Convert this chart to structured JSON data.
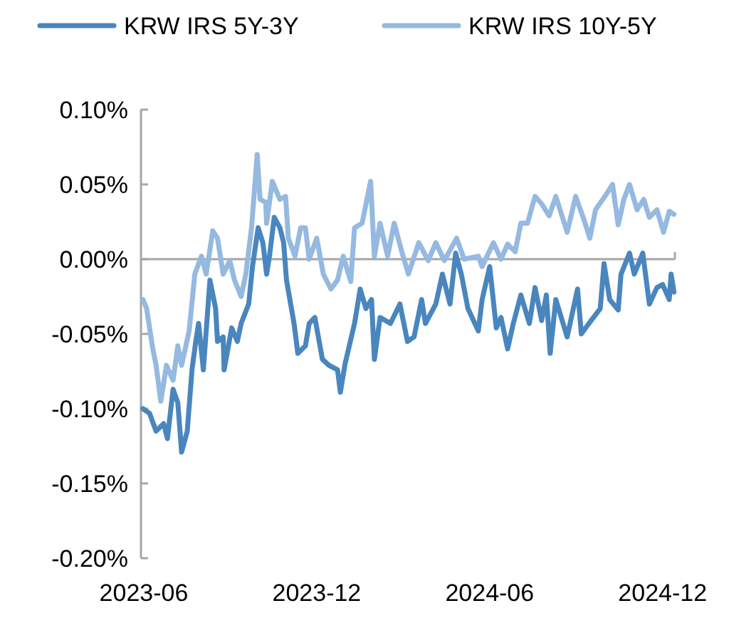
{
  "chart_data": {
    "type": "line",
    "legend": "top",
    "line_style": "solid",
    "marker": "none",
    "xlim": [
      "2023-05-29",
      "2024-12-14"
    ],
    "xticks": [
      {
        "value": "2023-06-01",
        "label": "2023-06"
      },
      {
        "value": "2023-12-01",
        "label": "2023-12"
      },
      {
        "value": "2024-06-01",
        "label": "2024-06"
      },
      {
        "value": "2024-12-01",
        "label": "2024-12"
      }
    ],
    "ylim": [
      -0.2,
      0.1
    ],
    "yticks": [
      {
        "value": -0.2,
        "label": "-0.20%"
      },
      {
        "value": -0.15,
        "label": "-0.15%"
      },
      {
        "value": -0.1,
        "label": "-0.10%"
      },
      {
        "value": -0.05,
        "label": "-0.05%"
      },
      {
        "value": 0,
        "label": "0.00%"
      },
      {
        "value": 0.05,
        "label": "0.05%"
      },
      {
        "value": 0.1,
        "label": "0.10%"
      }
    ],
    "series": [
      {
        "name": "KRW IRS 5Y-3Y",
        "color": "#4a86be",
        "x": [
          "2023-05-31",
          "2023-06-07",
          "2023-06-14",
          "2023-06-22",
          "2023-06-26",
          "2023-07-02",
          "2023-07-07",
          "2023-07-11",
          "2023-07-17",
          "2023-07-22",
          "2023-07-26",
          "2023-07-29",
          "2023-08-03",
          "2023-08-10",
          "2023-08-16",
          "2023-08-18",
          "2023-08-24",
          "2023-08-25",
          "2023-09-02",
          "2023-09-08",
          "2023-09-12",
          "2023-09-20",
          "2023-09-24",
          "2023-09-30",
          "2023-10-05",
          "2023-10-09",
          "2023-10-12",
          "2023-10-17",
          "2023-10-23",
          "2023-10-27",
          "2023-10-30",
          "2023-11-07",
          "2023-11-11",
          "2023-11-19",
          "2023-11-23",
          "2023-11-29",
          "2023-12-07",
          "2023-12-14",
          "2023-12-23",
          "2023-12-26",
          "2023-12-31",
          "2024-01-10",
          "2024-01-16",
          "2024-01-22",
          "2024-01-28",
          "2024-01-31",
          "2024-02-06",
          "2024-02-17",
          "2024-02-27",
          "2024-03-06",
          "2024-03-13",
          "2024-03-21",
          "2024-03-25",
          "2024-04-05",
          "2024-04-12",
          "2024-04-20",
          "2024-04-26",
          "2024-05-02",
          "2024-05-09",
          "2024-05-20",
          "2024-05-24",
          "2024-06-01",
          "2024-06-08",
          "2024-06-13",
          "2024-06-20",
          "2024-06-26",
          "2024-07-04",
          "2024-07-13",
          "2024-07-19",
          "2024-07-26",
          "2024-07-31",
          "2024-08-04",
          "2024-08-10",
          "2024-08-22",
          "2024-09-02",
          "2024-09-06",
          "2024-09-14",
          "2024-09-26",
          "2024-09-30",
          "2024-10-06",
          "2024-10-15",
          "2024-10-18",
          "2024-10-27",
          "2024-11-01",
          "2024-11-10",
          "2024-11-17",
          "2024-11-25",
          "2024-12-01",
          "2024-12-08",
          "2024-12-10",
          "2024-12-13"
        ],
        "values": [
          -0.1,
          -0.103,
          -0.115,
          -0.11,
          -0.12,
          -0.087,
          -0.096,
          -0.129,
          -0.115,
          -0.074,
          -0.055,
          -0.043,
          -0.074,
          -0.014,
          -0.033,
          -0.055,
          -0.052,
          -0.074,
          -0.046,
          -0.055,
          -0.043,
          -0.03,
          -0.005,
          0.021,
          0.011,
          -0.01,
          0.002,
          0.028,
          0.021,
          0.011,
          -0.014,
          -0.043,
          -0.063,
          -0.058,
          -0.043,
          -0.039,
          -0.067,
          -0.071,
          -0.074,
          -0.089,
          -0.07,
          -0.043,
          -0.02,
          -0.033,
          -0.027,
          -0.067,
          -0.039,
          -0.043,
          -0.03,
          -0.055,
          -0.052,
          -0.027,
          -0.043,
          -0.03,
          -0.01,
          -0.03,
          0.004,
          -0.01,
          -0.033,
          -0.048,
          -0.027,
          -0.005,
          -0.046,
          -0.039,
          -0.06,
          -0.043,
          -0.024,
          -0.043,
          -0.019,
          -0.041,
          -0.024,
          -0.063,
          -0.027,
          -0.052,
          -0.02,
          -0.05,
          -0.043,
          -0.033,
          -0.003,
          -0.027,
          -0.034,
          -0.01,
          0.004,
          -0.01,
          0.004,
          -0.03,
          -0.019,
          -0.017,
          -0.027,
          -0.01,
          -0.022
        ]
      },
      {
        "name": "KRW IRS 10Y-5Y",
        "color": "#95b9e0",
        "x": [
          "2023-05-31",
          "2023-06-04",
          "2023-06-10",
          "2023-06-14",
          "2023-06-19",
          "2023-06-25",
          "2023-07-02",
          "2023-07-07",
          "2023-07-11",
          "2023-07-19",
          "2023-07-25",
          "2023-08-01",
          "2023-08-06",
          "2023-08-13",
          "2023-08-18",
          "2023-08-24",
          "2023-08-31",
          "2023-09-05",
          "2023-09-12",
          "2023-09-17",
          "2023-09-23",
          "2023-09-29",
          "2023-10-02",
          "2023-10-08",
          "2023-10-09",
          "2023-10-15",
          "2023-10-23",
          "2023-10-29",
          "2023-11-01",
          "2023-11-08",
          "2023-11-14",
          "2023-11-19",
          "2023-11-23",
          "2023-12-01",
          "2023-12-08",
          "2023-12-16",
          "2023-12-23",
          "2023-12-29",
          "2024-01-06",
          "2024-01-10",
          "2024-01-18",
          "2024-01-27",
          "2024-01-31",
          "2024-02-06",
          "2024-02-14",
          "2024-02-21",
          "2024-02-29",
          "2024-03-07",
          "2024-03-18",
          "2024-03-28",
          "2024-04-05",
          "2024-04-14",
          "2024-04-27",
          "2024-05-05",
          "2024-05-20",
          "2024-05-24",
          "2024-06-05",
          "2024-06-13",
          "2024-06-20",
          "2024-06-28",
          "2024-07-04",
          "2024-07-11",
          "2024-07-19",
          "2024-07-26",
          "2024-08-03",
          "2024-08-10",
          "2024-08-22",
          "2024-08-31",
          "2024-09-09",
          "2024-09-15",
          "2024-09-21",
          "2024-10-02",
          "2024-10-09",
          "2024-10-15",
          "2024-10-21",
          "2024-10-27",
          "2024-11-04",
          "2024-11-11",
          "2024-11-17",
          "2024-11-25",
          "2024-12-02",
          "2024-12-08",
          "2024-12-13"
        ],
        "values": [
          -0.027,
          -0.033,
          -0.058,
          -0.071,
          -0.095,
          -0.071,
          -0.081,
          -0.058,
          -0.071,
          -0.048,
          -0.01,
          0.002,
          -0.01,
          0.019,
          0.014,
          -0.01,
          -0.001,
          -0.014,
          -0.025,
          -0.01,
          0.021,
          0.07,
          0.04,
          0.038,
          0.024,
          0.052,
          0.04,
          0.042,
          0.014,
          0.002,
          0.021,
          0.021,
          0.0,
          0.014,
          -0.01,
          -0.02,
          -0.014,
          0.002,
          -0.015,
          0.021,
          0.024,
          0.052,
          0.002,
          0.024,
          0.002,
          0.024,
          0.005,
          -0.01,
          0.011,
          -0.001,
          0.011,
          -0.001,
          0.014,
          0.0,
          0.002,
          -0.005,
          0.011,
          0.0,
          0.01,
          0.005,
          0.024,
          0.024,
          0.042,
          0.037,
          0.029,
          0.042,
          0.018,
          0.042,
          0.026,
          0.014,
          0.033,
          0.043,
          0.05,
          0.023,
          0.04,
          0.05,
          0.033,
          0.04,
          0.028,
          0.033,
          0.018,
          0.032,
          0.03
        ]
      }
    ]
  }
}
